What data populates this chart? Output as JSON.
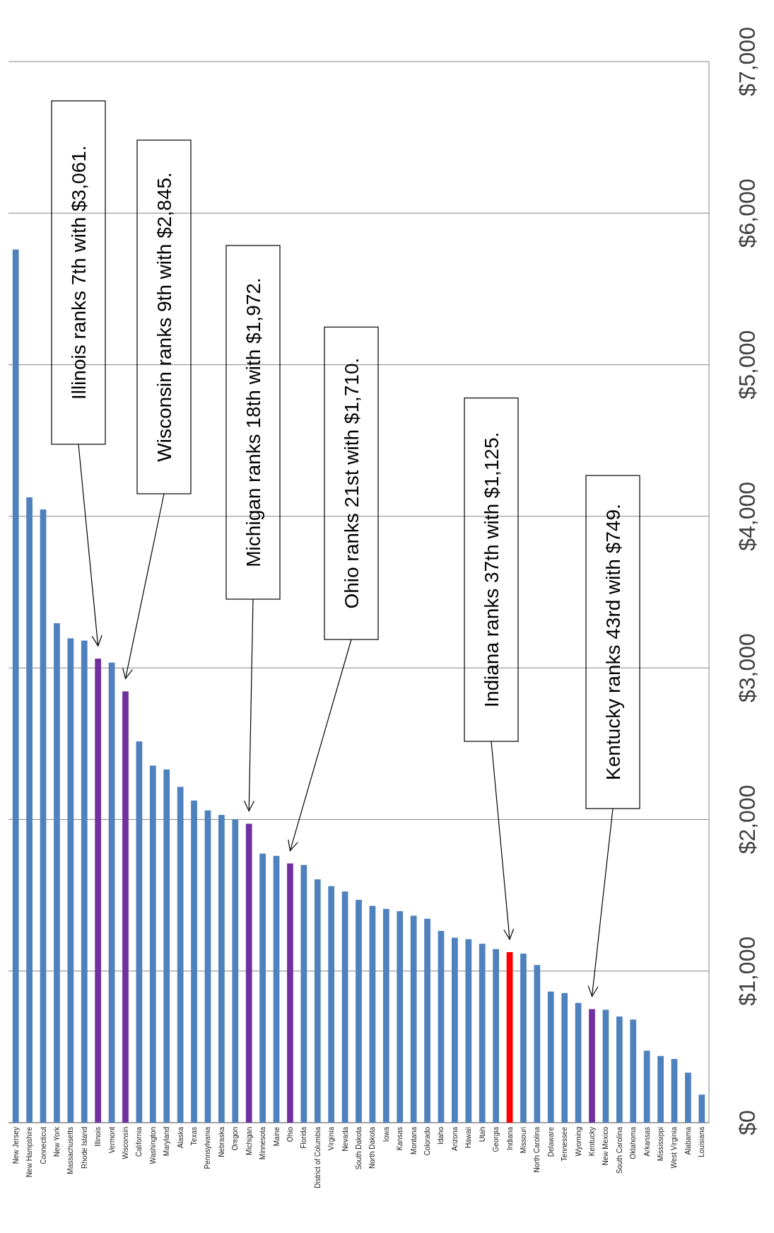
{
  "chart_data": {
    "type": "bar",
    "categories": [
      "New Jersey",
      "New Hampshire",
      "Connecticut",
      "New York",
      "Massachusetts",
      "Rhode Island",
      "Illinois",
      "Vermont",
      "Wisconsin",
      "California",
      "Washington",
      "Maryland",
      "Alaska",
      "Texas",
      "Pennsylvania",
      "Nebraska",
      "Oregon",
      "Michigan",
      "Minnesota",
      "Maine",
      "Ohio",
      "Florida",
      "District of Columbia",
      "Virginia",
      "Nevada",
      "South Dakota",
      "North Dakota",
      "Iowa",
      "Kansas",
      "Montana",
      "Colorado",
      "Idaho",
      "Arizona",
      "Hawaii",
      "Utah",
      "Georgia",
      "Indiana",
      "Missouri",
      "North Carolina",
      "Delaware",
      "Tennessee",
      "Wyoming",
      "Kentucky",
      "New Mexico",
      "South Carolina",
      "Oklahoma",
      "Arkansas",
      "Mississippi",
      "West Virginia",
      "Alabama",
      "Louisiana"
    ],
    "values": [
      5760,
      4125,
      4045,
      3295,
      3195,
      3180,
      3061,
      3035,
      2845,
      2515,
      2355,
      2330,
      2215,
      2125,
      2060,
      2030,
      2000,
      1972,
      1775,
      1760,
      1710,
      1700,
      1605,
      1560,
      1525,
      1470,
      1430,
      1410,
      1395,
      1365,
      1345,
      1265,
      1220,
      1210,
      1180,
      1145,
      1125,
      1115,
      1040,
      865,
      855,
      790,
      749,
      745,
      700,
      680,
      475,
      440,
      420,
      330,
      185
    ],
    "colors": [
      "#4f81bd",
      "#4f81bd",
      "#4f81bd",
      "#4f81bd",
      "#4f81bd",
      "#4f81bd",
      "#7030a0",
      "#4f81bd",
      "#7030a0",
      "#4f81bd",
      "#4f81bd",
      "#4f81bd",
      "#4f81bd",
      "#4f81bd",
      "#4f81bd",
      "#4f81bd",
      "#4f81bd",
      "#7030a0",
      "#4f81bd",
      "#4f81bd",
      "#7030a0",
      "#4f81bd",
      "#4f81bd",
      "#4f81bd",
      "#4f81bd",
      "#4f81bd",
      "#4f81bd",
      "#4f81bd",
      "#4f81bd",
      "#4f81bd",
      "#4f81bd",
      "#4f81bd",
      "#4f81bd",
      "#4f81bd",
      "#4f81bd",
      "#4f81bd",
      "#ff0000",
      "#4f81bd",
      "#4f81bd",
      "#4f81bd",
      "#4f81bd",
      "#4f81bd",
      "#7030a0",
      "#4f81bd",
      "#4f81bd",
      "#4f81bd",
      "#4f81bd",
      "#4f81bd",
      "#4f81bd",
      "#4f81bd",
      "#4f81bd"
    ],
    "ylim": [
      0,
      7000
    ],
    "yticks": [
      {
        "value": 0,
        "label": "$0"
      },
      {
        "value": 1000,
        "label": "$1,000"
      },
      {
        "value": 2000,
        "label": "$2,000"
      },
      {
        "value": 3000,
        "label": "$3,000"
      },
      {
        "value": 4000,
        "label": "$4,000"
      },
      {
        "value": 5000,
        "label": "$5,000"
      },
      {
        "value": 6000,
        "label": "$6,000"
      },
      {
        "value": 7000,
        "label": "$7,000"
      }
    ],
    "grid": "y",
    "annotations": [
      "Illinois ranks 7th with $3,061.",
      "Wisconsin ranks 9th with $2,845.",
      "Michigan ranks 18th with $1,972.",
      "Ohio ranks 21st with $1,710.",
      "Indiana ranks 37th with $1,125.",
      "Kentucky ranks 43rd with $749."
    ]
  }
}
